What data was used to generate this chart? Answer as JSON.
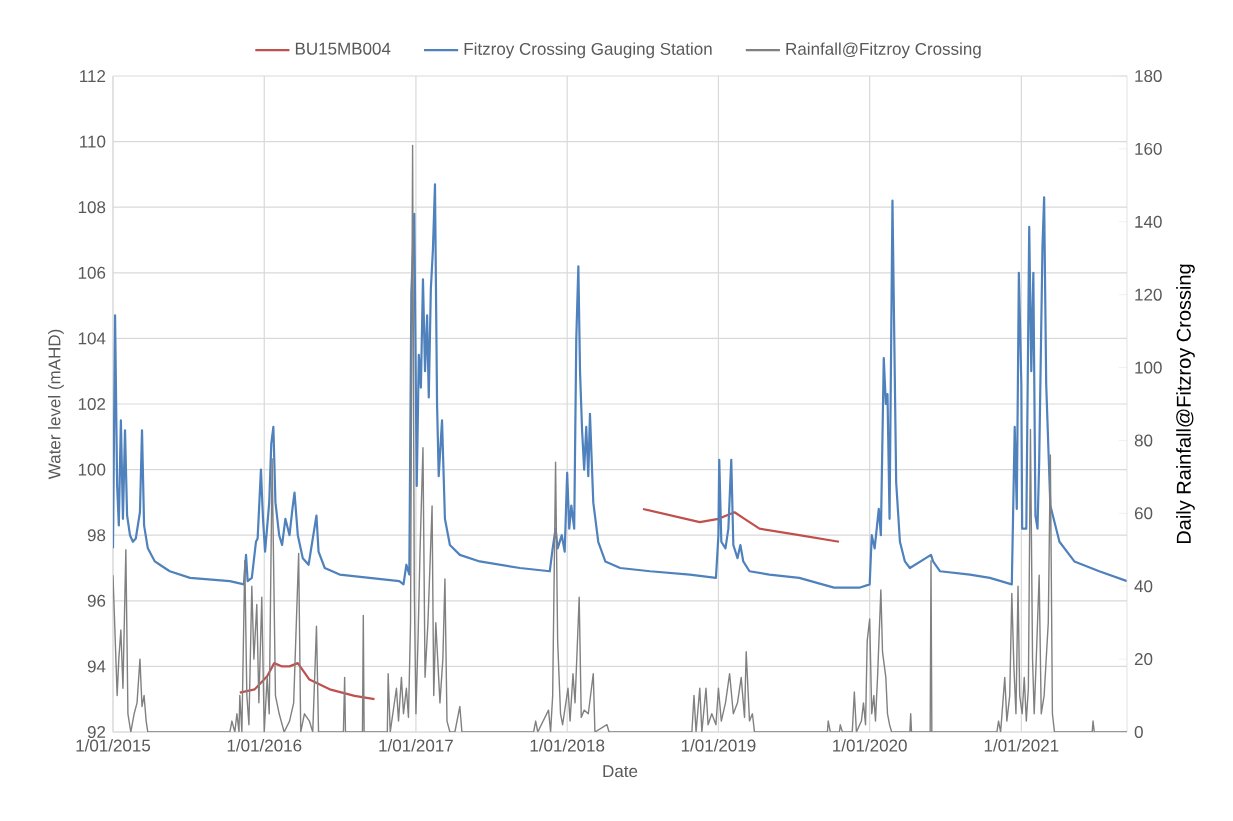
{
  "chart_data": {
    "type": "line",
    "xlabel": "Date",
    "ylabel": "Water level (mAHD)",
    "y2label": "Daily Rainfall@Fitzroy Crossing",
    "xlim": [
      "2015-01-01",
      "2021-09-13"
    ],
    "xticks": [
      {
        "value": "2015-01-01",
        "label": "1/01/2015"
      },
      {
        "value": "2016-01-01",
        "label": "1/01/2016"
      },
      {
        "value": "2017-01-01",
        "label": "1/01/2017"
      },
      {
        "value": "2018-01-01",
        "label": "1/01/2018"
      },
      {
        "value": "2019-01-01",
        "label": "1/01/2019"
      },
      {
        "value": "2020-01-01",
        "label": "1/01/2020"
      },
      {
        "value": "2021-01-01",
        "label": "1/01/2021"
      }
    ],
    "ylim": [
      92,
      112
    ],
    "yticks": [
      92,
      94,
      96,
      98,
      100,
      102,
      104,
      106,
      108,
      110,
      112
    ],
    "y2lim": [
      0,
      180
    ],
    "y2ticks": [
      0,
      20,
      40,
      60,
      80,
      100,
      120,
      140,
      160,
      180
    ],
    "grid": true,
    "legend": "top",
    "series": [
      {
        "name": "BU15MB004",
        "color": "#c0504d",
        "x": [
          "2015-11-03",
          "2015-12-09",
          "2016-01-08",
          "2016-01-25",
          "2016-02-13",
          "2016-03-02",
          "2016-03-22",
          "2016-04-19",
          "2016-06-07",
          "2016-08-06",
          "2016-09-23",
          "2017-06-01",
          "2018-07-03",
          "2018-11-17",
          "2019-01-01",
          "2019-02-09",
          "2019-03-05",
          "2019-04-10",
          "2019-07-15",
          "2019-10-19"
        ],
        "values": [
          93.2,
          93.3,
          93.7,
          94.1,
          94.0,
          94.0,
          94.1,
          93.6,
          93.3,
          93.1,
          93.0,
          null,
          98.8,
          98.4,
          98.5,
          98.7,
          98.5,
          98.2,
          98.0,
          97.8
        ]
      },
      {
        "name": "Fitzroy Crossing Gauging Station",
        "color": "#4f81bd",
        "x": [
          "2015-01-01",
          "2015-01-06",
          "2015-01-11",
          "2015-01-15",
          "2015-01-20",
          "2015-01-25",
          "2015-01-30",
          "2015-02-04",
          "2015-02-11",
          "2015-02-18",
          "2015-02-25",
          "2015-03-07",
          "2015-03-12",
          "2015-03-17",
          "2015-03-26",
          "2015-04-12",
          "2015-04-24",
          "2015-05-18",
          "2015-07-06",
          "2015-10-10",
          "2015-11-13",
          "2015-11-18",
          "2015-11-22",
          "2015-12-02",
          "2015-12-12",
          "2015-12-16",
          "2015-12-24",
          "2015-12-29",
          "2016-01-03",
          "2016-01-13",
          "2016-01-18",
          "2016-01-23",
          "2016-01-28",
          "2016-02-06",
          "2016-02-13",
          "2016-02-21",
          "2016-03-02",
          "2016-03-09",
          "2016-03-14",
          "2016-03-22",
          "2016-04-03",
          "2016-04-17",
          "2016-05-06",
          "2016-05-11",
          "2016-05-26",
          "2016-07-01",
          "2016-09-11",
          "2016-11-22",
          "2016-12-02",
          "2016-12-09",
          "2016-12-16",
          "2016-12-21",
          "2016-12-28",
          "2017-01-03",
          "2017-01-08",
          "2017-01-13",
          "2017-01-18",
          "2017-01-23",
          "2017-01-28",
          "2017-02-01",
          "2017-02-06",
          "2017-02-11",
          "2017-02-16",
          "2017-02-21",
          "2017-02-25",
          "2017-03-05",
          "2017-03-12",
          "2017-03-24",
          "2017-04-17",
          "2017-06-04",
          "2017-09-09",
          "2017-11-20",
          "2017-11-27",
          "2017-12-04",
          "2017-12-09",
          "2017-12-19",
          "2017-12-26",
          "2018-01-01",
          "2018-01-06",
          "2018-01-11",
          "2018-01-18",
          "2018-01-23",
          "2018-01-28",
          "2018-02-01",
          "2018-02-06",
          "2018-02-11",
          "2018-02-16",
          "2018-02-21",
          "2018-02-25",
          "2018-03-05",
          "2018-03-17",
          "2018-04-03",
          "2018-05-09",
          "2018-07-20",
          "2018-10-24",
          "2018-12-26",
          "2019-01-01",
          "2019-01-03",
          "2019-01-08",
          "2019-01-18",
          "2019-01-25",
          "2019-02-01",
          "2019-02-06",
          "2019-02-16",
          "2019-02-23",
          "2019-03-02",
          "2019-03-17",
          "2019-05-04",
          "2019-07-15",
          "2019-10-07",
          "2019-12-07",
          "2020-01-01",
          "2020-01-06",
          "2020-01-13",
          "2020-01-23",
          "2020-01-28",
          "2020-02-04",
          "2020-02-09",
          "2020-02-13",
          "2020-02-18",
          "2020-02-25",
          "2020-03-05",
          "2020-03-14",
          "2020-03-26",
          "2020-04-07",
          "2020-05-28",
          "2020-06-02",
          "2020-06-19",
          "2020-08-30",
          "2020-10-17",
          "2020-12-09",
          "2020-12-16",
          "2020-12-21",
          "2020-12-26",
          "2021-01-01",
          "2021-01-03",
          "2021-01-13",
          "2021-01-20",
          "2021-01-25",
          "2021-01-30",
          "2021-02-04",
          "2021-02-09",
          "2021-02-13",
          "2021-02-21",
          "2021-02-25",
          "2021-03-02",
          "2021-03-12",
          "2021-04-03",
          "2021-05-09",
          "2021-07-08",
          "2021-09-13"
        ],
        "values": [
          97.6,
          104.7,
          99.5,
          98.3,
          101.5,
          98.5,
          101.2,
          98.6,
          98.0,
          97.8,
          97.9,
          98.7,
          101.2,
          98.3,
          97.6,
          97.2,
          97.1,
          96.9,
          96.7,
          96.6,
          96.5,
          97.4,
          96.6,
          96.7,
          97.8,
          97.9,
          100.0,
          98.5,
          97.5,
          99.0,
          100.8,
          101.3,
          99.0,
          98.0,
          97.7,
          98.5,
          98.0,
          98.8,
          99.3,
          98.0,
          97.3,
          97.1,
          98.6,
          97.5,
          97.0,
          96.8,
          96.7,
          96.6,
          96.5,
          97.1,
          96.8,
          105.4,
          107.8,
          99.5,
          103.5,
          102.5,
          105.8,
          103.0,
          104.7,
          102.2,
          105.5,
          106.7,
          108.7,
          102.0,
          99.8,
          101.5,
          98.5,
          97.7,
          97.4,
          97.2,
          97.0,
          96.9,
          97.6,
          98.2,
          97.6,
          98.0,
          97.5,
          99.9,
          98.2,
          98.9,
          98.2,
          104.0,
          106.2,
          103.0,
          101.2,
          100.0,
          101.3,
          99.8,
          101.7,
          99.0,
          97.8,
          97.2,
          97.0,
          96.9,
          96.8,
          96.7,
          98.0,
          100.3,
          97.8,
          97.6,
          98.2,
          100.3,
          97.7,
          97.3,
          97.7,
          97.2,
          96.9,
          96.8,
          96.7,
          96.4,
          96.4,
          96.5,
          98.0,
          97.6,
          98.8,
          98.0,
          103.4,
          102.0,
          102.3,
          98.5,
          108.2,
          99.6,
          97.8,
          97.2,
          97.0,
          97.4,
          97.2,
          96.9,
          96.8,
          96.7,
          96.5,
          101.3,
          98.8,
          106.0,
          102.6,
          98.2,
          98.2,
          107.4,
          103.0,
          106.0,
          98.6,
          98.2,
          100.2,
          106.8,
          108.3,
          102.6,
          98.9,
          97.8,
          97.2,
          96.9,
          96.6
        ]
      },
      {
        "name": "Rainfall@Fitzroy Crossing",
        "color": "#808080",
        "axis": "y2",
        "x": [
          "2015-01-01",
          "2015-01-11",
          "2015-01-15",
          "2015-01-20",
          "2015-01-25",
          "2015-02-01",
          "2015-02-06",
          "2015-02-13",
          "2015-02-21",
          "2015-02-28",
          "2015-03-07",
          "2015-03-12",
          "2015-03-17",
          "2015-03-22",
          "2015-03-26",
          "2015-10-10",
          "2015-10-15",
          "2015-10-22",
          "2015-10-27",
          "2015-11-01",
          "2015-11-03",
          "2015-11-08",
          "2015-11-15",
          "2015-11-20",
          "2015-11-25",
          "2015-12-02",
          "2015-12-07",
          "2015-12-14",
          "2015-12-19",
          "2015-12-26",
          "2016-01-01",
          "2016-01-08",
          "2016-01-13",
          "2016-01-20",
          "2016-01-28",
          "2016-02-06",
          "2016-02-18",
          "2016-03-02",
          "2016-03-12",
          "2016-03-24",
          "2016-03-29",
          "2016-04-07",
          "2016-04-19",
          "2016-04-27",
          "2016-05-06",
          "2016-05-11",
          "2016-07-10",
          "2016-07-13",
          "2016-07-15",
          "2016-08-25",
          "2016-08-27",
          "2016-08-29",
          "2016-10-24",
          "2016-10-26",
          "2016-10-31",
          "2016-11-10",
          "2016-11-15",
          "2016-11-20",
          "2016-11-27",
          "2016-12-02",
          "2016-12-09",
          "2016-12-14",
          "2016-12-19",
          "2016-12-24",
          "2016-12-28",
          "2017-01-01",
          "2017-01-06",
          "2017-01-11",
          "2017-01-18",
          "2017-01-23",
          "2017-01-30",
          "2017-02-09",
          "2017-02-13",
          "2017-02-18",
          "2017-02-28",
          "2017-03-07",
          "2017-03-12",
          "2017-03-17",
          "2017-03-24",
          "2017-04-05",
          "2017-04-17",
          "2017-04-22",
          "2017-10-12",
          "2017-10-17",
          "2017-10-22",
          "2017-11-17",
          "2017-11-22",
          "2017-11-27",
          "2017-12-04",
          "2017-12-09",
          "2017-12-16",
          "2017-12-21",
          "2018-01-03",
          "2018-01-08",
          "2018-01-15",
          "2018-01-20",
          "2018-01-30",
          "2018-02-04",
          "2018-02-11",
          "2018-02-21",
          "2018-03-05",
          "2018-03-09",
          "2018-04-07",
          "2018-04-12",
          "2018-10-29",
          "2018-11-03",
          "2018-11-08",
          "2018-11-17",
          "2018-11-22",
          "2018-12-02",
          "2018-12-07",
          "2018-12-16",
          "2018-12-26",
          "2019-01-01",
          "2019-01-08",
          "2019-01-18",
          "2019-01-28",
          "2019-02-06",
          "2019-02-16",
          "2019-02-25",
          "2019-03-05",
          "2019-03-09",
          "2019-03-17",
          "2019-03-24",
          "2019-03-29",
          "2019-09-21",
          "2019-09-23",
          "2019-09-28",
          "2019-10-20",
          "2019-10-22",
          "2019-10-27",
          "2019-11-20",
          "2019-11-25",
          "2019-11-30",
          "2019-12-12",
          "2019-12-17",
          "2019-12-22",
          "2019-12-26",
          "2020-01-01",
          "2020-01-06",
          "2020-01-11",
          "2020-01-15",
          "2020-01-20",
          "2020-01-28",
          "2020-02-01",
          "2020-02-09",
          "2020-02-13",
          "2020-02-18",
          "2020-02-23",
          "2020-04-07",
          "2020-04-09",
          "2020-04-11",
          "2020-05-26",
          "2020-05-28",
          "2020-05-30",
          "2020-11-03",
          "2020-11-07",
          "2020-11-12",
          "2020-11-22",
          "2020-11-27",
          "2020-12-04",
          "2020-12-09",
          "2020-12-14",
          "2020-12-19",
          "2020-12-24",
          "2020-12-28",
          "2021-01-03",
          "2021-01-08",
          "2021-01-13",
          "2021-01-18",
          "2021-01-23",
          "2021-01-28",
          "2021-02-01",
          "2021-02-06",
          "2021-02-13",
          "2021-02-18",
          "2021-02-25",
          "2021-03-07",
          "2021-03-12",
          "2021-03-17",
          "2021-03-22",
          "2021-06-21",
          "2021-06-23",
          "2021-06-26",
          "2021-09-13"
        ],
        "values": [
          43,
          10,
          20,
          28,
          12,
          50,
          5,
          0,
          5,
          8,
          20,
          7,
          10,
          3,
          0,
          0,
          3,
          0,
          5,
          0,
          10,
          0,
          47,
          10,
          2,
          40,
          20,
          35,
          8,
          37,
          0,
          15,
          5,
          75,
          10,
          5,
          0,
          3,
          8,
          49,
          0,
          5,
          3,
          0,
          29,
          0,
          0,
          15,
          0,
          0,
          32,
          0,
          0,
          16,
          0,
          8,
          12,
          3,
          15,
          5,
          12,
          4,
          30,
          161,
          40,
          5,
          25,
          50,
          78,
          15,
          30,
          62,
          10,
          30,
          8,
          20,
          42,
          3,
          0,
          0,
          7,
          0,
          0,
          3,
          0,
          6,
          0,
          10,
          74,
          25,
          5,
          2,
          12,
          3,
          16,
          8,
          37,
          4,
          6,
          5,
          16,
          0,
          2,
          0,
          0,
          10,
          0,
          12,
          0,
          12,
          2,
          5,
          2,
          12,
          3,
          8,
          16,
          5,
          8,
          15,
          4,
          22,
          3,
          5,
          0,
          0,
          3,
          0,
          0,
          2,
          0,
          0,
          11,
          0,
          3,
          8,
          2,
          25,
          31,
          5,
          10,
          3,
          15,
          39,
          22,
          15,
          5,
          2,
          0,
          0,
          5,
          0,
          0,
          47,
          0,
          0,
          3,
          0,
          15,
          3,
          10,
          38,
          18,
          5,
          40,
          10,
          5,
          15,
          3,
          12,
          83,
          20,
          5,
          20,
          43,
          5,
          10,
          30,
          76,
          5,
          0,
          0,
          3,
          0,
          0
        ]
      }
    ]
  }
}
